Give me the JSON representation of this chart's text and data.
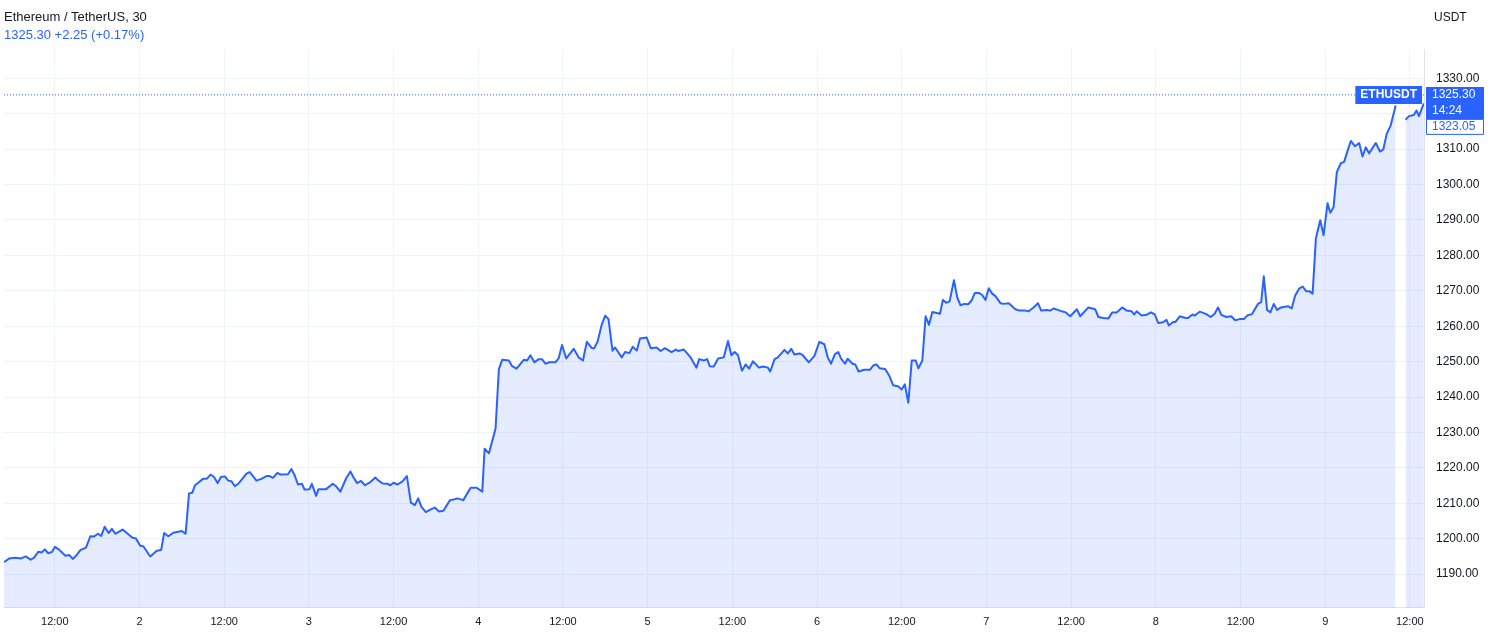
{
  "chart_data": {
    "type": "area",
    "title": "Ethereum / TetherUS, 30",
    "subtitle": "1325.30 +2.25 (+0.17%)",
    "ylabel": "USDT",
    "annotations": [
      "1325.30",
      "14:24",
      "1323.05"
    ],
    "ref_lines": [
      {
        "axis": "y",
        "value": 1325.3,
        "label": "ETHUSDT",
        "color": "#2962ff",
        "line_style": "dotted"
      }
    ],
    "xlim": [
      "--01-01T04:48",
      "--01-09T14:00"
    ],
    "ylim": [
      1180.5,
      1338.2
    ],
    "xticks": [
      {
        "value": "--01-01T12:00",
        "label": "12:00"
      },
      {
        "value": "--01-02",
        "label": "2"
      },
      {
        "value": "--01-02T12:00",
        "label": "12:00"
      },
      {
        "value": "--01-03",
        "label": "3"
      },
      {
        "value": "--01-03T12:00",
        "label": "12:00"
      },
      {
        "value": "--01-04",
        "label": "4"
      },
      {
        "value": "--01-04T12:00",
        "label": "12:00"
      },
      {
        "value": "--01-05",
        "label": "5"
      },
      {
        "value": "--01-05T12:00",
        "label": "12:00"
      },
      {
        "value": "--01-06",
        "label": "6"
      },
      {
        "value": "--01-06T12:00",
        "label": "12:00"
      },
      {
        "value": "--01-07",
        "label": "7"
      },
      {
        "value": "--01-07T12:00",
        "label": "12:00"
      },
      {
        "value": "--01-08",
        "label": "8"
      },
      {
        "value": "--01-08T12:00",
        "label": "12:00"
      },
      {
        "value": "--01-09",
        "label": "9"
      },
      {
        "value": "--01-09T12:00",
        "label": "12:00"
      }
    ],
    "yticks": [
      {
        "value": 1190,
        "label": "1190.00"
      },
      {
        "value": 1200,
        "label": "1200.00"
      },
      {
        "value": 1210,
        "label": "1210.00"
      },
      {
        "value": 1220,
        "label": "1220.00"
      },
      {
        "value": 1230,
        "label": "1230.00"
      },
      {
        "value": 1240,
        "label": "1240.00"
      },
      {
        "value": 1250,
        "label": "1250.00"
      },
      {
        "value": 1260,
        "label": "1260.00"
      },
      {
        "value": 1270,
        "label": "1270.00"
      },
      {
        "value": 1280,
        "label": "1280.00"
      },
      {
        "value": 1290,
        "label": "1290.00"
      },
      {
        "value": 1300,
        "label": "1300.00"
      },
      {
        "value": 1310,
        "label": "1310.00"
      },
      {
        "value": 1320,
        "label": null
      },
      {
        "value": 1330,
        "label": "1330.00"
      }
    ],
    "grid": true,
    "marker": "none",
    "line_style": "solid",
    "series": [
      {
        "color": "#2962ff",
        "x": [
          "--01-01T04:48",
          "--01-01T05:30",
          "--01-01T06:27",
          "--01-01T07:09",
          "--01-01T07:52",
          "--01-01T08:34",
          "--01-01T09:02",
          "--01-01T09:39",
          "--01-01T10:07",
          "--01-01T10:35",
          "--01-01T11:04",
          "--01-01T11:37",
          "--01-01T12:00",
          "--01-01T12:34",
          "--01-01T13:30",
          "--01-01T14:04",
          "--01-01T14:32",
          "--01-01T15:01",
          "--01-01T15:37",
          "--01-01T16:25",
          "--01-01T17:02",
          "--01-01T17:31",
          "--01-01T18:07",
          "--01-01T18:35",
          "--01-01T19:04",
          "--01-01T19:37",
          "--01-01T20:05",
          "--01-01T20:34",
          "--01-01T21:36",
          "--01-01T22:27",
          "--01-01T23:01",
          "--01-01T23:29",
          "--01-02T00:05",
          "--01-02T00:34",
          "--01-02T01:31",
          "--01-02T02:27",
          "--01-02T03:04",
          "--01-02T03:29",
          "--01-02T04:05",
          "--01-02T04:48",
          "--01-02T05:59",
          "--01-02T06:32",
          "--01-02T07:01",
          "--01-02T07:29",
          "--01-02T07:52",
          "--01-02T08:20",
          "--01-02T08:59",
          "--01-02T09:31",
          "--01-02T10:04",
          "--01-02T10:32",
          "--01-02T11:04",
          "--01-02T11:32",
          "--01-02T12:06",
          "--01-02T12:34",
          "--01-02T13:02",
          "--01-02T13:31",
          "--01-02T13:59",
          "--01-02T14:27",
          "--01-02T15:09",
          "--01-02T15:37",
          "--01-02T16:05",
          "--01-02T16:34",
          "--01-02T17:16",
          "--01-02T17:59",
          "--01-02T18:27",
          "--01-02T18:55",
          "--01-02T19:32",
          "--01-02T20:00",
          "--01-02T21:02",
          "--01-02T21:31",
          "--01-02T21:59",
          "--01-02T22:27",
          "--01-02T23:01",
          "--01-02T23:23",
          "--01-03T00:05",
          "--01-03T00:25",
          "--01-03T01:02",
          "--01-03T01:22",
          "--01-03T02:27",
          "--01-03T03:23",
          "--01-03T03:52",
          "--01-03T04:28",
          "--01-03T05:16",
          "--01-03T05:53",
          "--01-03T06:21",
          "--01-03T06:50",
          "--01-03T07:23",
          "--01-03T07:57",
          "--01-03T08:43",
          "--01-03T09:25",
          "--01-03T09:44",
          "--01-03T10:27",
          "--01-03T11:09",
          "--01-03T11:32",
          "--01-03T12:00",
          "--01-03T12:34",
          "--01-03T13:16",
          "--01-03T13:53",
          "--01-03T14:27",
          "--01-03T15:01",
          "--01-03T15:29",
          "--01-03T15:57",
          "--01-03T16:34",
          "--01-03T17:16",
          "--01-03T17:50",
          "--01-03T18:27",
          "--01-03T19:04",
          "--01-03T20:00",
          "--01-03T20:34",
          "--01-03T21:02",
          "--01-03T21:53",
          "--01-03T22:55",
          "--01-03T23:46",
          "--01-04T00:34",
          "--01-04T00:54",
          "--01-04T01:31",
          "--01-04T02:27",
          "--01-04T02:55",
          "--01-04T03:23",
          "--01-04T04:20",
          "--01-04T04:48",
          "--01-04T05:25",
          "--01-04T06:27",
          "--01-04T06:55",
          "--01-04T07:23",
          "--01-04T07:57",
          "--01-04T08:34",
          "--01-04T09:02",
          "--01-04T09:31",
          "--01-04T09:59",
          "--01-04T10:55",
          "--01-04T11:23",
          "--01-04T11:52",
          "--01-04T12:28",
          "--01-04T13:31",
          "--01-04T14:13",
          "--01-04T14:50",
          "--01-04T15:23",
          "--01-04T16:06",
          "--01-04T16:26",
          "--01-04T16:54",
          "--01-04T17:31",
          "--01-04T17:59",
          "--01-04T18:27",
          "--01-04T19:01",
          "--01-04T19:23",
          "--01-04T20:20",
          "--01-04T20:48",
          "--01-04T21:25",
          "--01-04T21:53",
          "--01-04T22:27",
          "--01-04T22:55",
          "--01-04T23:52",
          "--01-05T00:26",
          "--01-05T01:16",
          "--01-05T01:50",
          "--01-05T02:27",
          "--01-05T03:23",
          "--01-05T04:00",
          "--01-05T04:20",
          "--01-05T05:08",
          "--01-05T05:36",
          "--01-05T06:04",
          "--01-05T06:55",
          "--01-05T07:18",
          "--01-05T07:57",
          "--01-05T08:26",
          "--01-05T08:48",
          "--01-05T09:22",
          "--01-05T09:59",
          "--01-05T10:47",
          "--01-05T11:23",
          "--01-05T11:52",
          "--01-05T12:20",
          "--01-05T12:48",
          "--01-05T13:22",
          "--01-05T13:53",
          "--01-05T14:22",
          "--01-05T14:55",
          "--01-05T15:46",
          "--01-05T16:20",
          "--01-05T17:02",
          "--01-05T17:22",
          "--01-05T17:59",
          "--01-05T18:27",
          "--01-05T19:23",
          "--01-05T19:52",
          "--01-05T20:20",
          "--01-05T20:48",
          "--01-05T21:31",
          "--01-05T21:59",
          "--01-05T22:50",
          "--01-05T23:38",
          "--01-06T00:20",
          "--01-06T01:02",
          "--01-06T01:31",
          "--01-06T01:59",
          "--01-06T02:32",
          "--01-06T03:01",
          "--01-06T03:23",
          "--01-06T03:58",
          "--01-06T04:20",
          "--01-06T05:02",
          "--01-06T05:25",
          "--01-06T05:53",
          "--01-06T06:41",
          "--01-06T07:29",
          "--01-06T07:57",
          "--01-06T08:25",
          "--01-06T08:53",
          "--01-06T09:39",
          "--01-06T10:13",
          "--01-06T10:47",
          "--01-06T11:32",
          "--01-06T12:00",
          "--01-06T12:26",
          "--01-06T12:56",
          "--01-06T13:25",
          "--01-06T13:59",
          "--01-06T14:22",
          "--01-06T14:55",
          "--01-06T15:23",
          "--01-06T15:52",
          "--01-06T16:20",
          "--01-06T17:25",
          "--01-06T17:50",
          "--01-06T18:19",
          "--01-06T18:47",
          "--01-06T19:24",
          "--01-06T19:52",
          "--01-06T20:20",
          "--01-06T20:49",
          "--01-06T21:25",
          "--01-06T21:53",
          "--01-06T22:22",
          "--01-06T22:56",
          "--01-06T23:24",
          "--01-06T23:52",
          "--01-07T00:20",
          "--01-07T00:49",
          "--01-07T01:17",
          "--01-07T01:59",
          "--01-07T02:27",
          "--01-07T03:10",
          "--01-07T04:06",
          "--01-07T04:40",
          "--01-07T05:31",
          "--01-07T05:59",
          "--01-07T06:41",
          "--01-07T07:18",
          "--01-07T07:46",
          "--01-07T08:34",
          "--01-07T09:02",
          "--01-07T09:31",
          "--01-07T10:07",
          "--01-07T10:41",
          "--01-07T11:15",
          "--01-07T11:52",
          "--01-07T12:49",
          "--01-07T13:17",
          "--01-07T14:27",
          "--01-07T15:24",
          "--01-07T15:52",
          "--01-07T16:34",
          "--01-07T17:17",
          "--01-07T17:50",
          "--01-07T18:27",
          "--01-07T19:15",
          "--01-07T19:52",
          "--01-07T20:34",
          "--01-07T20:57",
          "--01-07T21:17",
          "--01-07T21:59",
          "--01-07T22:41",
          "--01-07T23:18",
          "--01-07T23:52",
          "--01-08T00:20",
          "--01-08T01:02",
          "--01-08T01:31",
          "--01-08T01:50",
          "--01-08T02:28",
          "--01-08T02:47",
          "--01-08T03:24",
          "--01-08T04:06",
          "--01-08T04:34",
          "--01-08T05:11",
          "--01-08T05:31",
          "--01-08T06:13",
          "--01-08T07:10",
          "--01-08T07:46",
          "--01-08T08:20",
          "--01-08T08:49",
          "--01-08T09:17",
          "--01-08T09:59",
          "--01-08T10:41",
          "--01-08T11:15",
          "--01-08T11:52",
          "--01-08T12:29",
          "--01-08T12:57",
          "--01-08T13:37",
          "--01-08T14:28",
          "--01-08T14:56",
          "--01-08T15:18",
          "--01-08T15:46",
          "--01-08T16:14",
          "--01-08T16:43",
          "--01-08T17:11",
          "--01-08T17:45",
          "--01-08T18:19",
          "--01-08T18:47",
          "--01-08T19:15",
          "--01-08T19:44",
          "--01-08T20:20",
          "--01-08T20:49",
          "--01-08T21:17",
          "--01-08T21:45",
          "--01-08T22:13",
          "--01-08T22:41",
          "--01-08T23:18",
          "--01-08T23:46",
          "--01-09T00:20",
          "--01-09T00:43",
          "--01-09T01:11",
          "--01-09T01:39",
          "--01-09T02:13",
          "--01-09T02:41",
          "--01-09T03:10",
          "--01-09T03:38",
          "--01-09T04:14",
          "--01-09T04:49",
          "--01-09T05:17",
          "--01-09T05:45",
          "--01-09T06:13",
          "--01-09T07:10",
          "--01-09T07:46",
          "--01-09T08:14",
          "--01-09T08:43",
          "--01-09T09:17",
          "--01-09T09:39",
          "--01-09T09:59",
          "--01-09T10:27",
          "--01-09T11:04",
          "--01-09T11:23",
          "--01-09T11:52",
          "--01-09T12:34",
          "--01-09T12:56",
          "--01-09T13:17",
          "--01-09T13:59"
        ],
        "values": [
          1193.4,
          1194.4,
          1194.6,
          1194.4,
          1195.0,
          1194.1,
          1194.6,
          1196.3,
          1196.1,
          1197.0,
          1195.9,
          1196.3,
          1197.7,
          1197.0,
          1195.2,
          1195.4,
          1194.3,
          1195.2,
          1196.8,
          1197.5,
          1200.7,
          1200.6,
          1201.4,
          1200.8,
          1203.4,
          1201.6,
          1202.8,
          1201.4,
          1202.6,
          1201.2,
          1200.3,
          1200.1,
          1198.1,
          1197.8,
          1195.0,
          1196.6,
          1196.8,
          1201.6,
          1200.7,
          1201.7,
          1202.2,
          1201.4,
          1212.8,
          1213.0,
          1215.1,
          1215.8,
          1216.9,
          1216.9,
          1218.1,
          1217.5,
          1215.7,
          1217.4,
          1217.6,
          1216.4,
          1216.2,
          1214.8,
          1215.5,
          1216.6,
          1218.4,
          1218.8,
          1217.7,
          1216.4,
          1216.9,
          1217.7,
          1217.7,
          1217.2,
          1218.6,
          1218.1,
          1218.2,
          1219.7,
          1217.9,
          1215.3,
          1215.5,
          1213.9,
          1214.0,
          1215.5,
          1212.1,
          1214.0,
          1214.0,
          1215.5,
          1214.8,
          1213.3,
          1217.0,
          1219.0,
          1217.2,
          1215.7,
          1216.3,
          1215.1,
          1216.0,
          1217.3,
          1216.6,
          1215.6,
          1215.5,
          1215.1,
          1215.8,
          1215.3,
          1216.2,
          1217.7,
          1210.2,
          1209.5,
          1211.4,
          1209.0,
          1207.5,
          1208.3,
          1208.8,
          1207.7,
          1207.9,
          1210.9,
          1211.1,
          1211.4,
          1210.9,
          1214.4,
          1214.4,
          1213.3,
          1225.4,
          1224.1,
          1231.1,
          1247.8,
          1250.5,
          1250.3,
          1248.7,
          1248.0,
          1250.5,
          1250.3,
          1251.8,
          1249.8,
          1250.7,
          1250.7,
          1249.4,
          1249.8,
          1249.8,
          1250.9,
          1254.7,
          1250.9,
          1253.6,
          1251.2,
          1250.3,
          1255.6,
          1253.8,
          1253.8,
          1255.6,
          1260.6,
          1263.0,
          1262.0,
          1253.1,
          1254.0,
          1251.2,
          1252.7,
          1252.4,
          1254.2,
          1253.1,
          1256.5,
          1256.8,
          1253.8,
          1254.0,
          1253.0,
          1253.8,
          1252.7,
          1253.4,
          1253.0,
          1253.4,
          1252.3,
          1251.2,
          1248.3,
          1250.7,
          1250.3,
          1250.7,
          1248.7,
          1248.6,
          1250.9,
          1251.2,
          1255.8,
          1251.8,
          1252.7,
          1251.8,
          1247.4,
          1249.2,
          1248.0,
          1250.1,
          1248.3,
          1248.6,
          1248.3,
          1247.2,
          1250.7,
          1251.2,
          1253.3,
          1252.3,
          1253.6,
          1252.0,
          1252.3,
          1251.8,
          1249.8,
          1251.6,
          1255.6,
          1254.9,
          1251.2,
          1249.4,
          1252.1,
          1252.7,
          1250.9,
          1249.4,
          1250.8,
          1249.4,
          1249.2,
          1247.2,
          1247.7,
          1247.7,
          1248.9,
          1249.2,
          1248.1,
          1247.9,
          1246.1,
          1243.3,
          1243.0,
          1242.1,
          1243.6,
          1238.4,
          1250.3,
          1250.3,
          1248.1,
          1250.3,
          1262.8,
          1260.4,
          1264.0,
          1263.5,
          1267.4,
          1266.6,
          1267.0,
          1273.0,
          1268.1,
          1265.9,
          1266.3,
          1266.2,
          1267.2,
          1269.4,
          1269.4,
          1268.8,
          1267.4,
          1270.7,
          1269.2,
          1268.5,
          1266.5,
          1266.3,
          1266.5,
          1264.8,
          1264.4,
          1264.4,
          1264.2,
          1265.3,
          1266.5,
          1264.4,
          1264.6,
          1264.4,
          1265.0,
          1264.6,
          1264.2,
          1263.9,
          1262.8,
          1264.8,
          1262.8,
          1265.3,
          1264.8,
          1262.6,
          1262.3,
          1262.2,
          1263.9,
          1263.9,
          1265.3,
          1264.4,
          1264.2,
          1263.3,
          1264.2,
          1263.0,
          1263.2,
          1263.9,
          1263.3,
          1260.9,
          1261.1,
          1261.8,
          1260.2,
          1261.2,
          1261.2,
          1262.8,
          1262.4,
          1262.3,
          1263.3,
          1263.0,
          1264.1,
          1263.4,
          1262.6,
          1263.5,
          1265.3,
          1263.2,
          1262.6,
          1262.8,
          1261.7,
          1262.0,
          1262.0,
          1263.0,
          1263.4,
          1266.3,
          1266.8,
          1274.1,
          1264.6,
          1263.9,
          1266.3,
          1264.6,
          1265.3,
          1265.5,
          1265.6,
          1265.0,
          1268.6,
          1270.7,
          1271.2,
          1269.9,
          1269.9,
          1269.2,
          1284.8,
          1289.9,
          1285.7,
          1294.7,
          1292.0,
          1293.6,
          1303.5,
          1306.0,
          1306.4,
          1309.5,
          1312.3,
          1310.8,
          1311.7,
          1307.9,
          1310.5,
          1308.8,
          1311.7,
          1309.3,
          1309.9,
          1314.3,
          1316.7,
          1319.6,
          1322.3,
          null,
          null,
          1318.3,
          1319.3,
          1319.6,
          1320.9,
          1319.3,
          1322.9
        ]
      }
    ]
  }
}
